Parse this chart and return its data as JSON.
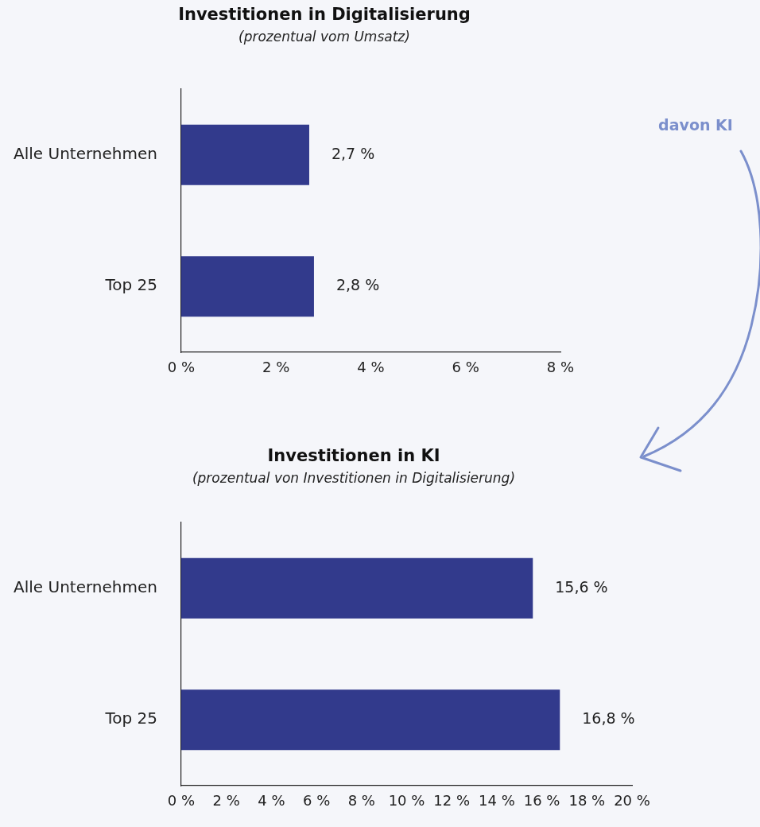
{
  "chart_data": [
    {
      "type": "bar",
      "orientation": "horizontal",
      "title": "Investitionen in Digitalisierung",
      "subtitle": "(prozentual vom Umsatz)",
      "categories": [
        "Alle Unternehmen",
        "Top 25"
      ],
      "values": [
        2.7,
        2.8
      ],
      "value_labels": [
        "2,7 %",
        "2,8 %"
      ],
      "color": "#323a8c",
      "xlim": [
        0,
        8
      ],
      "xticks": [
        {
          "value": 0,
          "label": "0 %"
        },
        {
          "value": 2,
          "label": "2 %"
        },
        {
          "value": 4,
          "label": "4 %"
        },
        {
          "value": 6,
          "label": "6 %"
        },
        {
          "value": 8,
          "label": "8 %"
        }
      ],
      "annotations": [
        "davon KI"
      ]
    },
    {
      "type": "bar",
      "orientation": "horizontal",
      "title": "Investitionen in KI",
      "subtitle": "(prozentual von Investitionen in Digitalisierung)",
      "categories": [
        "Alle Unternehmen",
        "Top 25"
      ],
      "values": [
        15.6,
        16.8
      ],
      "value_labels": [
        "15,6 %",
        "16,8 %"
      ],
      "color": "#323a8c",
      "xlim": [
        0,
        20
      ],
      "xticks": [
        {
          "value": 0,
          "label": "0 %"
        },
        {
          "value": 2,
          "label": "2 %"
        },
        {
          "value": 4,
          "label": "4 %"
        },
        {
          "value": 6,
          "label": "6 %"
        },
        {
          "value": 8,
          "label": "8 %"
        },
        {
          "value": 10,
          "label": "10 %"
        },
        {
          "value": 12,
          "label": "12 %"
        },
        {
          "value": 14,
          "label": "14 %"
        },
        {
          "value": 16,
          "label": "16 %"
        },
        {
          "value": 18,
          "label": "18 %"
        },
        {
          "value": 20,
          "label": "20 %"
        }
      ]
    }
  ]
}
